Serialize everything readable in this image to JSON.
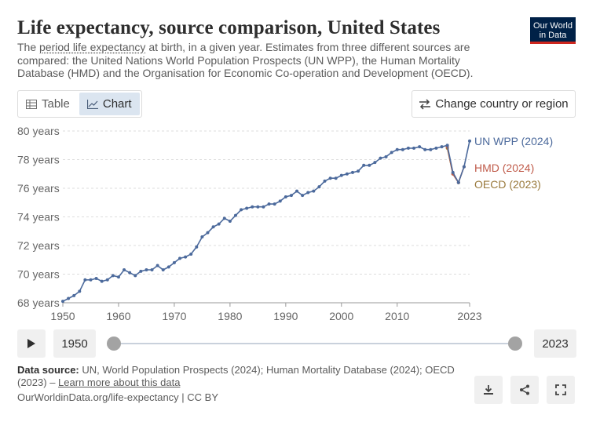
{
  "header": {
    "title": "Life expectancy, source comparison, United States",
    "subtitle_pre": "The ",
    "subtitle_link": "period life expectancy",
    "subtitle_post": " at birth, in a given year. Estimates from three different sources are compared: the United Nations World Population Prospects (UN WPP), the Human Mortality Database (HMD) and the Organisation for Economic Co-operation and Development (OECD).",
    "logo_line1": "Our World",
    "logo_line2": "in Data"
  },
  "tabs": {
    "table_label": "Table",
    "chart_label": "Chart"
  },
  "change_label": "Change country or region",
  "timeline": {
    "start_year": "1950",
    "end_year": "2023"
  },
  "footer": {
    "source_label": "Data source:",
    "source_text": " UN, World Population Prospects (2024); Human Mortality Database (2024); OECD (2023) – ",
    "learn_more": "Learn more about this data",
    "url": "OurWorldinData.org/life-expectancy | CC BY"
  },
  "colors": {
    "un": "#4c6a9c",
    "hmd": "#c05c4b",
    "oecd": "#9a7a3c",
    "grid": "#dddddd"
  },
  "chart_data": {
    "type": "line",
    "title": "Life expectancy, source comparison, United States",
    "ylim": [
      68,
      80
    ],
    "xlim": [
      1950,
      2023
    ],
    "y_ticks": [
      68,
      70,
      72,
      74,
      76,
      78,
      80
    ],
    "y_tick_suffix": " years",
    "x_ticks": [
      "1950",
      "1960",
      "1970",
      "1980",
      "1990",
      "2000",
      "2010",
      "2023"
    ],
    "series": [
      {
        "name": "UN WPP (2024)",
        "color": "#4c6a9c",
        "x": [
          1950,
          1951,
          1952,
          1953,
          1954,
          1955,
          1956,
          1957,
          1958,
          1959,
          1960,
          1961,
          1962,
          1963,
          1964,
          1965,
          1966,
          1967,
          1968,
          1969,
          1970,
          1971,
          1972,
          1973,
          1974,
          1975,
          1976,
          1977,
          1978,
          1979,
          1980,
          1981,
          1982,
          1983,
          1984,
          1985,
          1986,
          1987,
          1988,
          1989,
          1990,
          1991,
          1992,
          1993,
          1994,
          1995,
          1996,
          1997,
          1998,
          1999,
          2000,
          2001,
          2002,
          2003,
          2004,
          2005,
          2006,
          2007,
          2008,
          2009,
          2010,
          2011,
          2012,
          2013,
          2014,
          2015,
          2016,
          2017,
          2018,
          2019,
          2020,
          2021,
          2022,
          2023
        ],
        "y": [
          68.1,
          68.3,
          68.5,
          68.8,
          69.6,
          69.6,
          69.7,
          69.5,
          69.6,
          69.9,
          69.8,
          70.3,
          70.1,
          69.9,
          70.2,
          70.3,
          70.3,
          70.6,
          70.3,
          70.5,
          70.8,
          71.1,
          71.2,
          71.4,
          71.9,
          72.6,
          72.9,
          73.3,
          73.5,
          73.9,
          73.7,
          74.1,
          74.5,
          74.6,
          74.7,
          74.7,
          74.7,
          74.9,
          74.9,
          75.1,
          75.4,
          75.5,
          75.8,
          75.5,
          75.7,
          75.8,
          76.1,
          76.5,
          76.7,
          76.7,
          76.9,
          77.0,
          77.1,
          77.2,
          77.6,
          77.6,
          77.8,
          78.1,
          78.2,
          78.5,
          78.7,
          78.7,
          78.8,
          78.8,
          78.9,
          78.7,
          78.7,
          78.8,
          78.9,
          79.0,
          77.1,
          76.4,
          77.5,
          79.3
        ]
      },
      {
        "name": "HMD (2024)",
        "color": "#c05c4b",
        "x": [
          2019,
          2020,
          2021,
          2022
        ],
        "y": [
          78.9,
          77.0,
          76.4,
          77.5
        ]
      },
      {
        "name": "OECD (2023)",
        "color": "#9a7a3c",
        "x": [
          2019,
          2020,
          2021
        ],
        "y": [
          78.8,
          77.0,
          76.4
        ]
      }
    ]
  }
}
